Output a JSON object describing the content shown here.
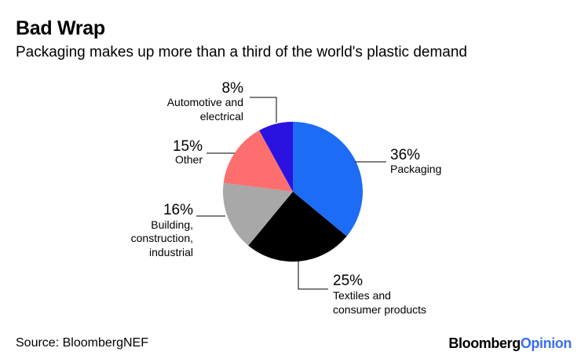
{
  "header": {
    "title": "Bad Wrap",
    "subtitle": "Packaging makes up more than a third of the world's plastic demand"
  },
  "footer": {
    "source": "Source: BloombergNEF",
    "brand_part1": "Bloomberg",
    "brand_part2": "Opinion",
    "brand_color": "#3a6ef6"
  },
  "chart_data": {
    "type": "pie",
    "title": "Bad Wrap",
    "subtitle": "Packaging makes up more than a third of the world's plastic demand",
    "start": "12 o'clock, clockwise",
    "slices": [
      {
        "label": "Packaging",
        "value": 36,
        "value_label": "36%",
        "color": "#1d6cf5"
      },
      {
        "label": "Textiles and consumer products",
        "value": 25,
        "value_label": "25%",
        "color": "#000000"
      },
      {
        "label": "Building, construction, industrial",
        "value": 16,
        "value_label": "16%",
        "color": "#a8a8a8"
      },
      {
        "label": "Other",
        "value": 15,
        "value_label": "15%",
        "color": "#fd6f6f"
      },
      {
        "label": "Automotive and electrical",
        "value": 8,
        "value_label": "8%",
        "color": "#2a12e0"
      }
    ]
  }
}
